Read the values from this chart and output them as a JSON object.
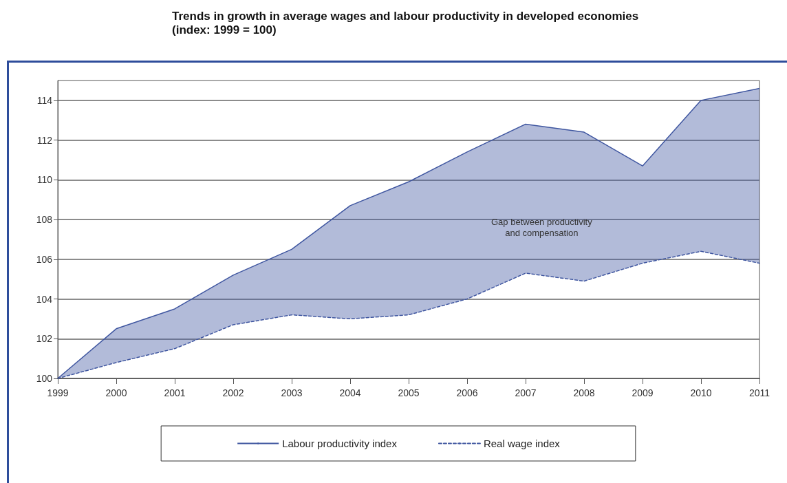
{
  "chart_data": {
    "type": "line",
    "title": "Trends in growth in average wages and labour productivity in developed economies\n(index: 1999 = 100)",
    "categories": [
      "1999",
      "2000",
      "2001",
      "2002",
      "2003",
      "2004",
      "2005",
      "2006",
      "2007",
      "2008",
      "2009",
      "2010",
      "2011"
    ],
    "series": [
      {
        "name": "Labour productivity index",
        "type": "area",
        "color": "#3f56a0",
        "line_style": "solid",
        "values": [
          100,
          102.5,
          103.5,
          105.2,
          106.5,
          108.7,
          109.9,
          111.4,
          112.8,
          112.4,
          110.7,
          114.0,
          114.6
        ]
      },
      {
        "name": "Real wage index",
        "color": "#3f56a0",
        "line_style": "dashed",
        "values": [
          100,
          100.8,
          101.5,
          102.7,
          103.2,
          103.0,
          103.2,
          104.0,
          105.3,
          104.9,
          105.8,
          106.4,
          105.8
        ]
      }
    ],
    "ylim": [
      100,
      115
    ],
    "yticks": [
      100,
      102,
      104,
      106,
      108,
      110,
      112,
      114
    ],
    "grid": "y",
    "legend": "bottom",
    "marker": "none",
    "annotations": [
      "Gap between productivity\nand compensation"
    ]
  }
}
